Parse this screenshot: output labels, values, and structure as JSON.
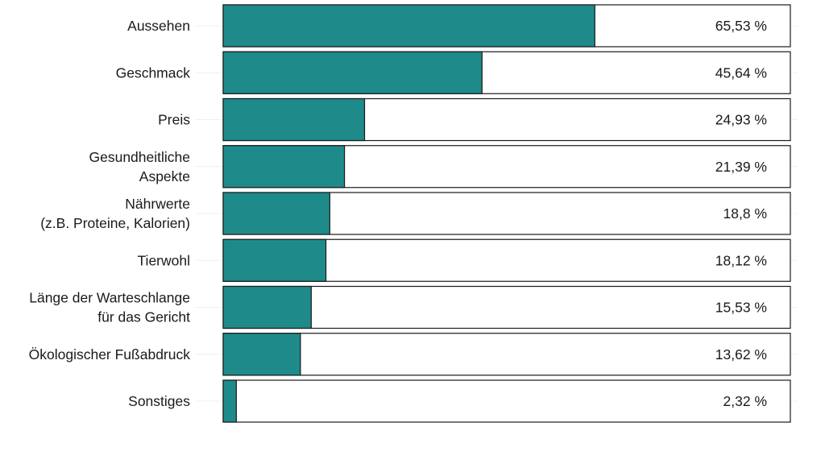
{
  "chart_data": {
    "type": "bar",
    "orientation": "horizontal",
    "categories": [
      [
        "Aussehen"
      ],
      [
        "Geschmack"
      ],
      [
        "Preis"
      ],
      [
        "Gesundheitliche",
        "Aspekte"
      ],
      [
        "Nährwerte",
        "(z.B. Proteine, Kalorien)"
      ],
      [
        "Tierwohl"
      ],
      [
        "Länge der Warteschlange",
        "für das Gericht"
      ],
      [
        "Ökologischer Fußabdruck"
      ],
      [
        "Sonstiges"
      ]
    ],
    "values": [
      65.53,
      45.64,
      24.93,
      21.39,
      18.8,
      18.12,
      15.53,
      13.62,
      2.32
    ],
    "value_labels": [
      "65,53 %",
      "45,64 %",
      "24,93 %",
      "21,39 %",
      "18,8 %",
      "18,12 %",
      "15,53 %",
      "13,62 %",
      "2,32 %"
    ],
    "xlim": [
      0,
      100
    ],
    "unit": "%",
    "grid": false,
    "legend": "none",
    "colors": {
      "bar_fill": "#1f8a8a",
      "bar_stroke": "#1a1a1a",
      "track_fill": "#ffffff"
    }
  }
}
